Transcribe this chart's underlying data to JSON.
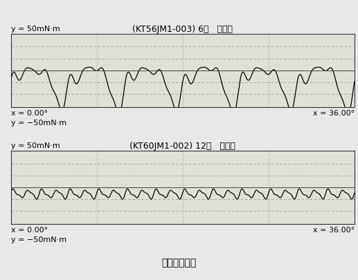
{
  "top_title": "(KT56JM1-003) 6极   无微调",
  "bottom_title": "(KT60JM1-002) 12极   有微调",
  "main_title": "齿槽转矩比较",
  "top_ylabel_top": "y = 50mN·m",
  "top_ylabel_bottom": "y = −50mN·m",
  "bottom_ylabel_top": "y = 50mN·m",
  "bottom_ylabel_bottom": "y = −50mN·m",
  "xlabel_left": "x = 0.00°",
  "xlabel_right": "x = 36.00°",
  "bg_color": "#e8e8e8",
  "plot_bg": "#e0e0d8",
  "line_color": "#000000",
  "grid_dash_color": "#888888",
  "grid_solid_color": "#444444",
  "border_color": "#333333",
  "font_size_label": 8,
  "font_size_title": 9,
  "font_size_main": 10
}
